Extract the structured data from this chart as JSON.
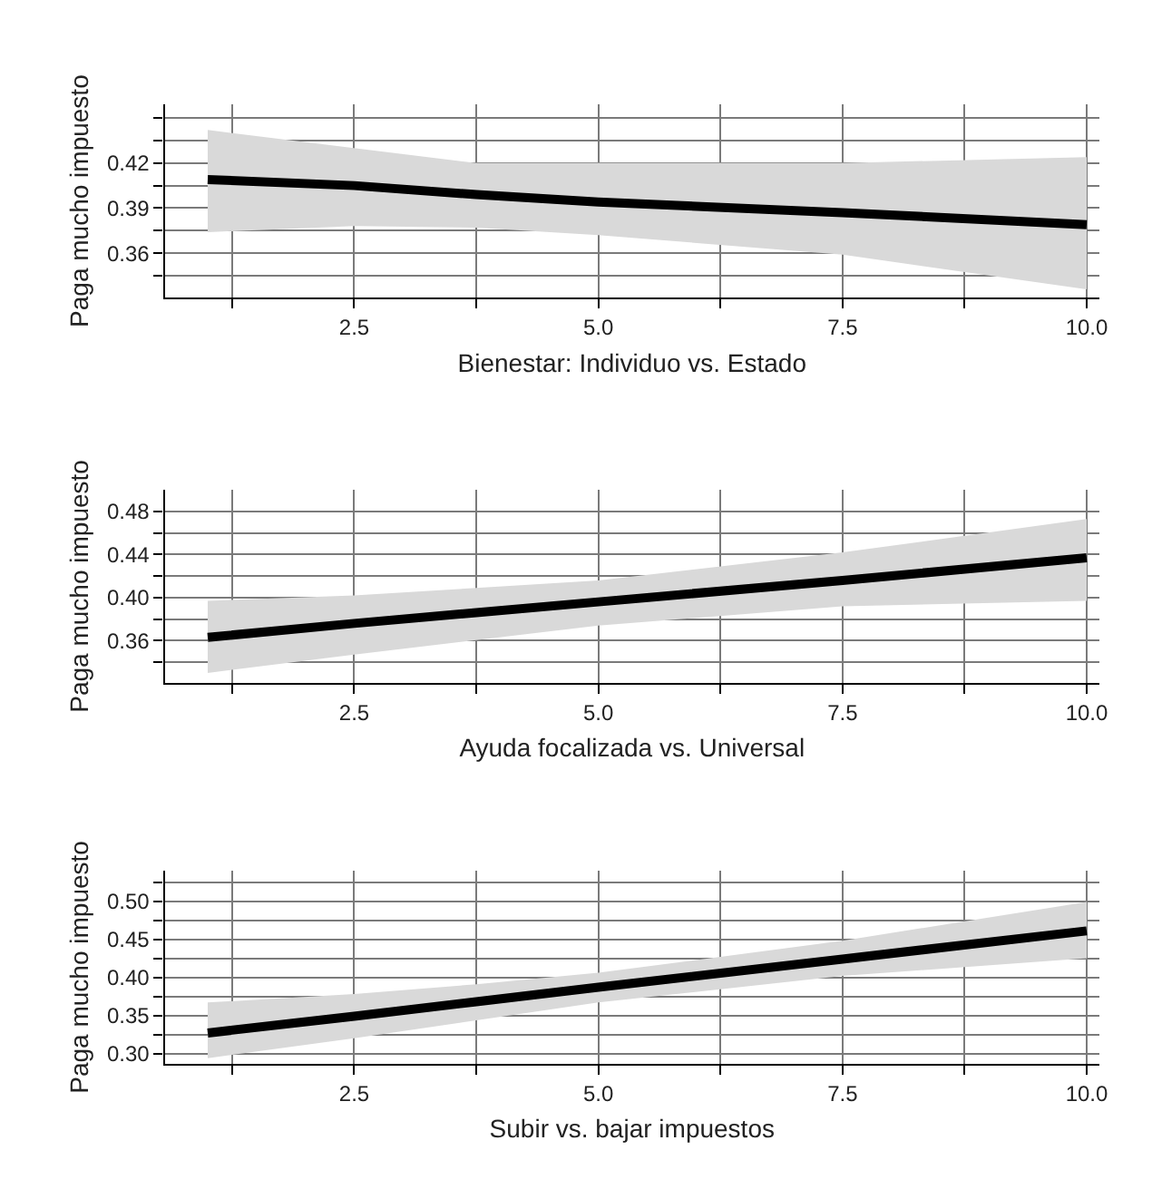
{
  "chart_data": [
    {
      "type": "line",
      "xlabel": "Bienestar: Individuo vs. Estado",
      "ylabel": "Paga mucho impuesto",
      "grid": true,
      "marker": "none",
      "line_style": "solid",
      "xlim": [
        0.56,
        10.13
      ],
      "ylim": [
        0.3305,
        0.459
      ],
      "xticks": [
        {
          "value": 1.25,
          "label": null
        },
        {
          "value": 2.5,
          "label": "2.5"
        },
        {
          "value": 3.75,
          "label": null
        },
        {
          "value": 5,
          "label": "5.0"
        },
        {
          "value": 6.25,
          "label": null
        },
        {
          "value": 7.5,
          "label": "7.5"
        },
        {
          "value": 8.75,
          "label": null
        },
        {
          "value": 10,
          "label": "10.0"
        }
      ],
      "yticks": [
        {
          "value": 0.345,
          "label": null
        },
        {
          "value": 0.36,
          "label": "0.36"
        },
        {
          "value": 0.375,
          "label": null
        },
        {
          "value": 0.39,
          "label": "0.39"
        },
        {
          "value": 0.405,
          "label": null
        },
        {
          "value": 0.42,
          "label": "0.42"
        },
        {
          "value": 0.435,
          "label": null
        },
        {
          "value": 0.45,
          "label": null
        }
      ],
      "x": [
        1,
        2.5,
        3.75,
        5,
        7.5,
        10
      ],
      "series": [
        {
          "color": "#000000",
          "values": [
            0.409,
            0.405,
            0.399,
            0.394,
            0.387,
            0.379
          ],
          "lower": [
            0.374,
            0.378,
            0.377,
            0.372,
            0.359,
            0.336
          ],
          "upper": [
            0.442,
            0.43,
            0.42,
            0.42,
            0.42,
            0.424
          ]
        }
      ]
    },
    {
      "type": "line",
      "xlabel": "Ayuda focalizada vs. Universal",
      "ylabel": "Paga mucho impuesto",
      "grid": true,
      "marker": "none",
      "line_style": "solid",
      "xlim": [
        0.56,
        10.13
      ],
      "ylim": [
        0.3208,
        0.5003
      ],
      "xticks": [
        {
          "value": 1.25,
          "label": null
        },
        {
          "value": 2.5,
          "label": "2.5"
        },
        {
          "value": 3.75,
          "label": null
        },
        {
          "value": 5,
          "label": "5.0"
        },
        {
          "value": 6.25,
          "label": null
        },
        {
          "value": 7.5,
          "label": "7.5"
        },
        {
          "value": 8.75,
          "label": null
        },
        {
          "value": 10,
          "label": "10.0"
        }
      ],
      "yticks": [
        {
          "value": 0.34,
          "label": null
        },
        {
          "value": 0.36,
          "label": "0.36"
        },
        {
          "value": 0.38,
          "label": null
        },
        {
          "value": 0.4,
          "label": "0.40"
        },
        {
          "value": 0.42,
          "label": null
        },
        {
          "value": 0.44,
          "label": "0.44"
        },
        {
          "value": 0.46,
          "label": null
        },
        {
          "value": 0.48,
          "label": "0.48"
        }
      ],
      "x": [
        1,
        2.5,
        3.75,
        5,
        7.5,
        10
      ],
      "series": [
        {
          "color": "#000000",
          "values": [
            0.363,
            0.376,
            0.386,
            0.396,
            0.416,
            0.437
          ],
          "lower": [
            0.33,
            0.347,
            0.361,
            0.374,
            0.392,
            0.397
          ],
          "upper": [
            0.397,
            0.402,
            0.409,
            0.416,
            0.442,
            0.473
          ]
        }
      ]
    },
    {
      "type": "line",
      "xlabel": "Subir vs. bajar impuestos",
      "ylabel": "Paga mucho impuesto",
      "grid": true,
      "marker": "none",
      "line_style": "solid",
      "xlim": [
        0.56,
        10.13
      ],
      "ylim": [
        0.2867,
        0.54
      ],
      "xticks": [
        {
          "value": 1.25,
          "label": null
        },
        {
          "value": 2.5,
          "label": "2.5"
        },
        {
          "value": 3.75,
          "label": null
        },
        {
          "value": 5,
          "label": "5.0"
        },
        {
          "value": 6.25,
          "label": null
        },
        {
          "value": 7.5,
          "label": "7.5"
        },
        {
          "value": 8.75,
          "label": null
        },
        {
          "value": 10,
          "label": "10.0"
        }
      ],
      "yticks": [
        {
          "value": 0.3,
          "label": "0.30"
        },
        {
          "value": 0.325,
          "label": null
        },
        {
          "value": 0.35,
          "label": "0.35"
        },
        {
          "value": 0.375,
          "label": null
        },
        {
          "value": 0.4,
          "label": "0.40"
        },
        {
          "value": 0.425,
          "label": null
        },
        {
          "value": 0.45,
          "label": "0.45"
        },
        {
          "value": 0.475,
          "label": null
        },
        {
          "value": 0.5,
          "label": "0.50"
        },
        {
          "value": 0.525,
          "label": null
        }
      ],
      "x": [
        1,
        2.5,
        3.75,
        5,
        7.5,
        10
      ],
      "series": [
        {
          "color": "#000000",
          "values": [
            0.327,
            0.349,
            0.368,
            0.387,
            0.424,
            0.461
          ],
          "lower": [
            0.294,
            0.32,
            0.343,
            0.367,
            0.402,
            0.425
          ],
          "upper": [
            0.367,
            0.378,
            0.391,
            0.406,
            0.448,
            0.499
          ]
        }
      ]
    }
  ]
}
